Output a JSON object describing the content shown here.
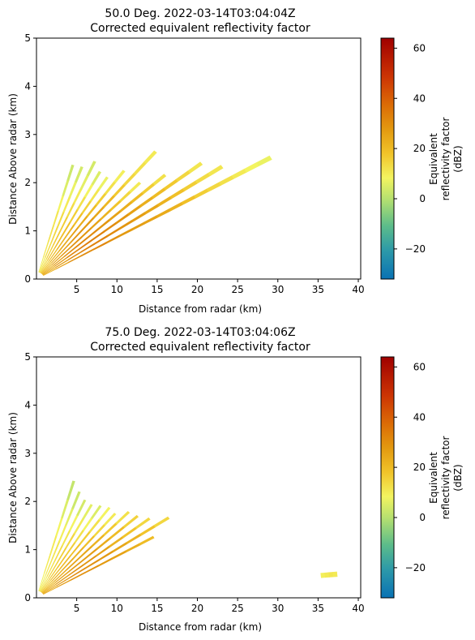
{
  "chart_data": [
    {
      "type": "heatmap",
      "title_line1": "50.0 Deg. 2022-03-14T03:04:04Z",
      "title_line2": "Corrected equivalent reflectivity factor",
      "xlabel": "Distance from radar (km)",
      "ylabel": "Distance Above radar  (km)",
      "xlim": [
        0,
        40.3
      ],
      "ylim": [
        0,
        5
      ],
      "xticks": [
        5,
        10,
        15,
        20,
        25,
        30,
        35,
        40
      ],
      "yticks": [
        0,
        1,
        2,
        3,
        4,
        5
      ],
      "colorbar": {
        "label_lines": [
          "Equivalent",
          "reflectivity factor",
          "(dBZ)"
        ],
        "range": [
          -32,
          64
        ],
        "ticks": [
          -20,
          0,
          20,
          40,
          60
        ]
      },
      "sweeps": [
        {
          "angle_deg": 30.0,
          "r_start": 1.0,
          "r_end": 33.6,
          "dbz": [
            22,
            26,
            30,
            31,
            32,
            30,
            28,
            27,
            26,
            24,
            22,
            19,
            16,
            14,
            12,
            10,
            8,
            7
          ]
        },
        {
          "angle_deg": 34.0,
          "r_start": 1.0,
          "r_end": 27.8,
          "dbz": [
            24,
            28,
            31,
            33,
            33,
            31,
            29,
            27,
            25,
            22,
            19,
            16,
            13,
            11
          ]
        },
        {
          "angle_deg": 38.0,
          "r_start": 1.0,
          "r_end": 26.0,
          "dbz": [
            24,
            29,
            32,
            34,
            33,
            31,
            29,
            26,
            23,
            20,
            17,
            14,
            11
          ]
        },
        {
          "angle_deg": 42.0,
          "r_start": 1.0,
          "r_end": 21.5,
          "dbz": [
            23,
            28,
            31,
            32,
            31,
            29,
            26,
            23,
            20,
            16,
            12
          ]
        },
        {
          "angle_deg": 46.0,
          "r_start": 1.0,
          "r_end": 18.5,
          "dbz": [
            21,
            26,
            29,
            30,
            29,
            26,
            22,
            18,
            14,
            10
          ]
        },
        {
          "angle_deg": 50.0,
          "r_start": 1.0,
          "r_end": 23.0,
          "dbz": [
            20,
            24,
            27,
            29,
            28,
            25,
            21,
            17,
            14,
            12,
            10
          ]
        },
        {
          "angle_deg": 54.0,
          "r_start": 1.0,
          "r_end": 18.5,
          "dbz": [
            18,
            22,
            25,
            26,
            24,
            20,
            16,
            12,
            9
          ]
        },
        {
          "angle_deg": 58.0,
          "r_start": 1.0,
          "r_end": 16.6,
          "dbz": [
            16,
            20,
            22,
            22,
            19,
            15,
            11,
            7
          ]
        },
        {
          "angle_deg": 62.0,
          "r_start": 1.0,
          "r_end": 16.8,
          "dbz": [
            14,
            18,
            20,
            19,
            16,
            12,
            8,
            5
          ]
        },
        {
          "angle_deg": 66.0,
          "r_start": 1.0,
          "r_end": 17.8,
          "dbz": [
            12,
            16,
            17,
            16,
            13,
            10,
            6,
            4
          ]
        },
        {
          "angle_deg": 70.0,
          "r_start": 1.0,
          "r_end": 16.5,
          "dbz": [
            10,
            13,
            14,
            13,
            10,
            7,
            4
          ]
        },
        {
          "angle_deg": 74.0,
          "r_start": 1.0,
          "r_end": 16.4,
          "dbz": [
            9,
            11,
            12,
            11,
            8,
            5,
            3
          ]
        }
      ]
    },
    {
      "type": "heatmap",
      "title_line1": "75.0 Deg. 2022-03-14T03:04:06Z",
      "title_line2": "Corrected equivalent reflectivity factor",
      "xlabel": "Distance from radar (km)",
      "ylabel": "Distance Above radar  (km)",
      "xlim": [
        0,
        40.3
      ],
      "ylim": [
        0,
        5
      ],
      "xticks": [
        5,
        10,
        15,
        20,
        25,
        30,
        35,
        40
      ],
      "yticks": [
        0,
        1,
        2,
        3,
        4,
        5
      ],
      "colorbar": {
        "label_lines": [
          "Equivalent",
          "reflectivity factor",
          "(dBZ)"
        ],
        "range": [
          -32,
          64
        ],
        "ticks": [
          -20,
          0,
          20,
          40,
          60
        ]
      },
      "sweeps": [
        {
          "angle_deg": 30.0,
          "r_start": 1.0,
          "r_end": 16.8,
          "dbz": [
            24,
            28,
            30,
            30,
            28,
            26,
            23,
            20
          ]
        },
        {
          "angle_deg": 34.0,
          "r_start": 1.0,
          "r_end": 19.8,
          "dbz": [
            25,
            29,
            31,
            30,
            28,
            25,
            22,
            18,
            14
          ]
        },
        {
          "angle_deg": 38.0,
          "r_start": 1.0,
          "r_end": 17.8,
          "dbz": [
            24,
            28,
            30,
            29,
            26,
            22,
            18,
            14
          ]
        },
        {
          "angle_deg": 42.0,
          "r_start": 1.0,
          "r_end": 16.9,
          "dbz": [
            22,
            26,
            28,
            27,
            24,
            20,
            15
          ]
        },
        {
          "angle_deg": 46.0,
          "r_start": 1.0,
          "r_end": 16.5,
          "dbz": [
            20,
            24,
            26,
            25,
            22,
            17,
            12
          ]
        },
        {
          "angle_deg": 50.0,
          "r_start": 1.0,
          "r_end": 15.2,
          "dbz": [
            18,
            22,
            24,
            22,
            19,
            14,
            10
          ]
        },
        {
          "angle_deg": 54.0,
          "r_start": 1.0,
          "r_end": 15.4,
          "dbz": [
            16,
            20,
            21,
            19,
            16,
            12,
            8
          ]
        },
        {
          "angle_deg": 58.0,
          "r_start": 1.0,
          "r_end": 15.0,
          "dbz": [
            14,
            17,
            18,
            16,
            12,
            8,
            5
          ]
        },
        {
          "angle_deg": 62.0,
          "r_start": 1.0,
          "r_end": 14.6,
          "dbz": [
            12,
            15,
            16,
            14,
            10,
            6
          ]
        },
        {
          "angle_deg": 66.0,
          "r_start": 1.0,
          "r_end": 14.8,
          "dbz": [
            10,
            12,
            13,
            11,
            8,
            4
          ]
        },
        {
          "angle_deg": 70.0,
          "r_start": 1.0,
          "r_end": 15.6,
          "dbz": [
            9,
            11,
            11,
            9,
            6,
            3
          ]
        },
        {
          "angle_deg": 74.0,
          "r_start": 1.0,
          "r_end": 16.8,
          "dbz": [
            8,
            10,
            10,
            8,
            5,
            2
          ]
        },
        {
          "angle_deg": 5.0,
          "r_start": 35.5,
          "r_end": 37.5,
          "dbz": [
            9,
            10,
            11,
            10
          ]
        }
      ]
    }
  ]
}
